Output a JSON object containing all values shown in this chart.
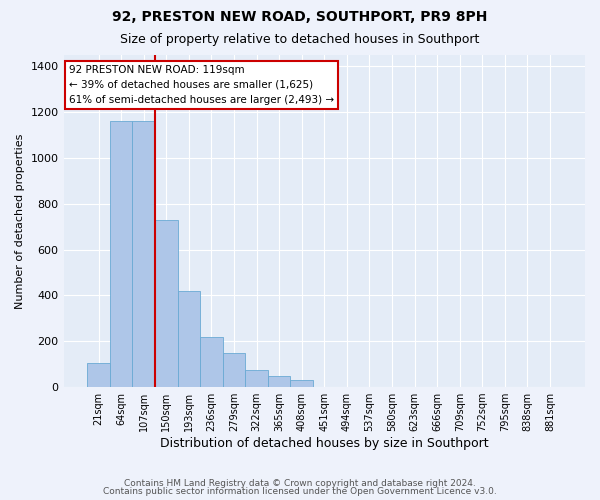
{
  "title": "92, PRESTON NEW ROAD, SOUTHPORT, PR9 8PH",
  "subtitle": "Size of property relative to detached houses in Southport",
  "xlabel": "Distribution of detached houses by size in Southport",
  "ylabel": "Number of detached properties",
  "bin_labels": [
    "21sqm",
    "64sqm",
    "107sqm",
    "150sqm",
    "193sqm",
    "236sqm",
    "279sqm",
    "322sqm",
    "365sqm",
    "408sqm",
    "451sqm",
    "494sqm",
    "537sqm",
    "580sqm",
    "623sqm",
    "666sqm",
    "709sqm",
    "752sqm",
    "795sqm",
    "838sqm",
    "881sqm"
  ],
  "bar_values": [
    107,
    1160,
    1160,
    730,
    420,
    220,
    150,
    75,
    50,
    30,
    0,
    0,
    0,
    0,
    0,
    0,
    0,
    0,
    0,
    0,
    0
  ],
  "bar_color": "#aec6e8",
  "bar_edgecolor": "#6aaad4",
  "vline_color": "#cc0000",
  "annotation_text": "92 PRESTON NEW ROAD: 119sqm\n← 39% of detached houses are smaller (1,625)\n61% of semi-detached houses are larger (2,493) →",
  "annotation_box_edgecolor": "#cc0000",
  "ylim": [
    0,
    1450
  ],
  "yticks": [
    0,
    200,
    400,
    600,
    800,
    1000,
    1200,
    1400
  ],
  "footer1": "Contains HM Land Registry data © Crown copyright and database right 2024.",
  "footer2": "Contains public sector information licensed under the Open Government Licence v3.0.",
  "bg_color": "#eef2fb",
  "plot_bg_color": "#e4ecf7"
}
